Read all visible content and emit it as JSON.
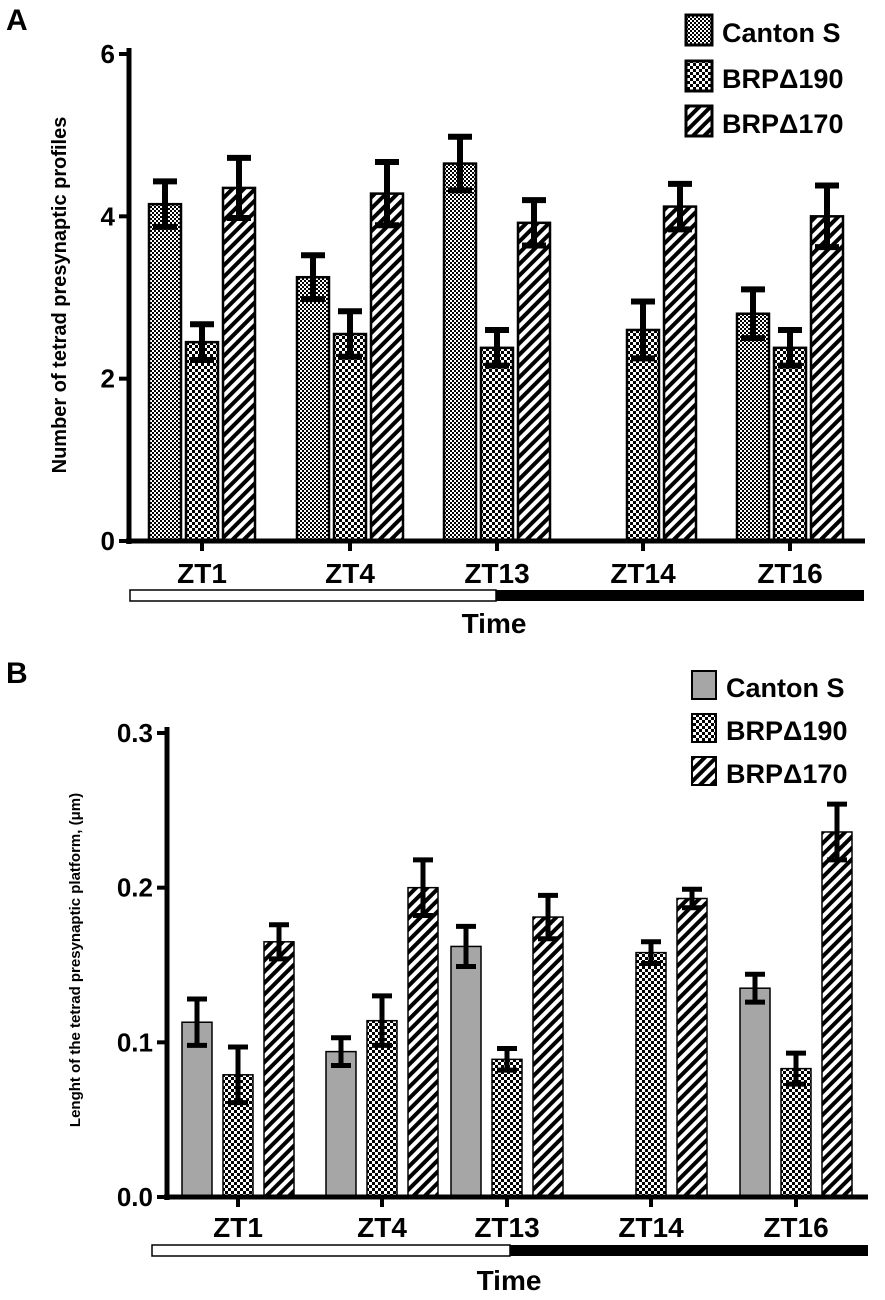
{
  "colors": {
    "ink": "#000000",
    "canton_fill": "#a6a6a6",
    "background": "#ffffff"
  },
  "chart_data": [
    {
      "panel": "A",
      "type": "bar",
      "categories": [
        "ZT1",
        "ZT4",
        "ZT13",
        "ZT14",
        "ZT16"
      ],
      "ylabel": "Number of tetrad presynaptic profiles",
      "xlabel": "Time",
      "ylim": [
        0,
        6
      ],
      "yticks": [
        "0",
        "2",
        "4",
        "6"
      ],
      "light_dark_bar": {
        "light": [
          "ZT1",
          "ZT4",
          "ZT13"
        ],
        "dark": [
          "ZT13",
          "ZT14",
          "ZT16"
        ]
      },
      "legend": [
        "Canton S",
        "BRPΔ190",
        "BRPΔ170"
      ],
      "legend_position": "top-right",
      "series": [
        {
          "name": "Canton S",
          "pattern": "dense-check",
          "values": [
            4.15,
            3.25,
            4.65,
            null,
            2.8
          ],
          "errors": [
            0.28,
            0.27,
            0.33,
            null,
            0.3
          ]
        },
        {
          "name": "BRPΔ190",
          "pattern": "check",
          "values": [
            2.45,
            2.55,
            2.38,
            2.6,
            2.38
          ],
          "errors": [
            0.22,
            0.28,
            0.22,
            0.35,
            0.22
          ]
        },
        {
          "name": "BRPΔ170",
          "pattern": "hatch",
          "values": [
            4.35,
            4.28,
            3.92,
            4.12,
            4.0
          ],
          "errors": [
            0.37,
            0.39,
            0.28,
            0.28,
            0.38
          ]
        }
      ]
    },
    {
      "panel": "B",
      "type": "bar",
      "categories": [
        "ZT1",
        "ZT4",
        "ZT13",
        "ZT14",
        "ZT16"
      ],
      "ylabel": "Lenght of the tetrad presynaptic platform, (μm)",
      "xlabel": "Time",
      "ylim": [
        0,
        0.3
      ],
      "yticks": [
        "0.0",
        "0.1",
        "0.2",
        "0.3"
      ],
      "light_dark_bar": {
        "light": [
          "ZT1",
          "ZT4",
          "ZT13"
        ],
        "dark": [
          "ZT13",
          "ZT14",
          "ZT16"
        ]
      },
      "legend": [
        "Canton S",
        "BRPΔ190",
        "BRPΔ170"
      ],
      "legend_position": "top-right",
      "series": [
        {
          "name": "Canton S",
          "pattern": "gray",
          "values": [
            0.113,
            0.094,
            0.162,
            null,
            0.135
          ],
          "errors": [
            0.015,
            0.009,
            0.013,
            null,
            0.009
          ]
        },
        {
          "name": "BRPΔ190",
          "pattern": "check",
          "values": [
            0.079,
            0.114,
            0.089,
            0.158,
            0.083
          ],
          "errors": [
            0.018,
            0.016,
            0.007,
            0.007,
            0.01
          ]
        },
        {
          "name": "BRPΔ170",
          "pattern": "hatch",
          "values": [
            0.165,
            0.2,
            0.181,
            0.193,
            0.236
          ],
          "errors": [
            0.011,
            0.018,
            0.014,
            0.006,
            0.018
          ]
        }
      ]
    }
  ]
}
